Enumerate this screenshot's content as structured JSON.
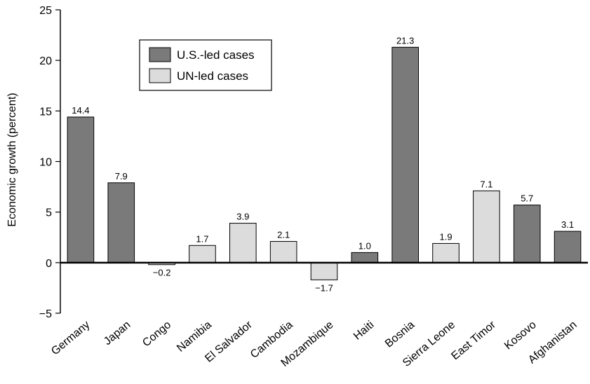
{
  "chart_data": {
    "type": "bar",
    "title": "",
    "xlabel": "",
    "ylabel": "Economic growth (percent)",
    "ylim": [
      -5,
      25
    ],
    "yticks": [
      -5,
      0,
      5,
      10,
      15,
      20,
      25
    ],
    "grid": false,
    "legend_position": "top-left",
    "colors": {
      "us": "#7a7a7a",
      "un": "#dcdcdc",
      "stroke": "#000000"
    },
    "legend": [
      {
        "key": "us",
        "label": "U.S.-led cases"
      },
      {
        "key": "un",
        "label": "UN-led cases"
      }
    ],
    "categories": [
      "Germany",
      "Japan",
      "Congo",
      "Namibia",
      "El Salvador",
      "Cambodia",
      "Mozambique",
      "Haiti",
      "Bosnia",
      "Sierra Leone",
      "East Timor",
      "Kosovo",
      "Afghanistan"
    ],
    "values": [
      14.4,
      7.9,
      -0.2,
      1.7,
      3.9,
      2.1,
      -1.7,
      1.0,
      21.3,
      1.9,
      7.1,
      5.7,
      3.1
    ],
    "value_labels": [
      "14.4",
      "7.9",
      "−0.2",
      "1.7",
      "3.9",
      "2.1",
      "−1.7",
      "1.0",
      "21.3",
      "1.9",
      "7.1",
      "5.7",
      "3.1"
    ],
    "groups": [
      "us",
      "us",
      "un",
      "un",
      "un",
      "un",
      "un",
      "us",
      "us",
      "un",
      "un",
      "us",
      "us"
    ],
    "tick_labels": [
      "−5",
      "0",
      "5",
      "10",
      "15",
      "20",
      "25"
    ]
  }
}
